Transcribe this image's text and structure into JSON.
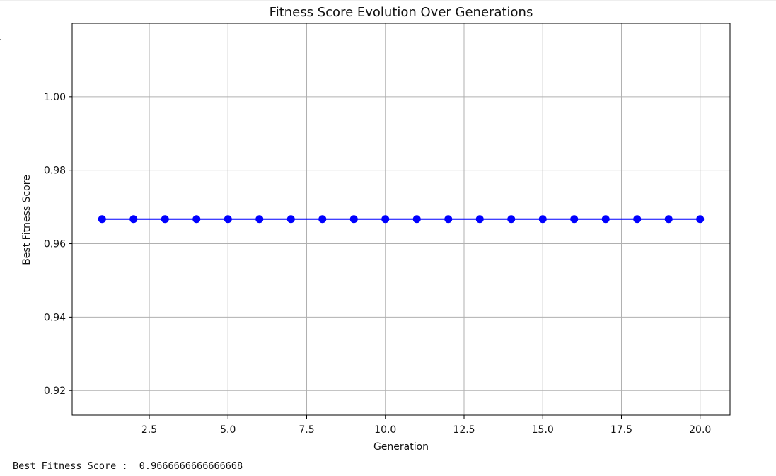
{
  "chart_data": {
    "type": "line",
    "title": "Fitness Score Evolution Over Generations",
    "xlabel": "Generation",
    "ylabel": "Best Fitness Score",
    "xlim": [
      0.05,
      20.95
    ],
    "ylim": [
      0.9133,
      1.02
    ],
    "xticks": [
      2.5,
      5.0,
      7.5,
      10.0,
      12.5,
      15.0,
      17.5,
      20.0
    ],
    "xtick_labels": [
      "2.5",
      "5.0",
      "7.5",
      "10.0",
      "12.5",
      "15.0",
      "17.5",
      "20.0"
    ],
    "yticks": [
      0.92,
      0.94,
      0.96,
      0.98,
      1.0
    ],
    "ytick_labels": [
      "0.92",
      "0.94",
      "0.96",
      "0.98",
      "1.00"
    ],
    "grid": true,
    "marker": "o",
    "series": [
      {
        "color": "#0000ff",
        "x": [
          1,
          2,
          3,
          4,
          5,
          6,
          7,
          8,
          9,
          10,
          11,
          12,
          13,
          14,
          15,
          16,
          17,
          18,
          19,
          20
        ],
        "y": [
          0.9667,
          0.9667,
          0.9667,
          0.9667,
          0.9667,
          0.9667,
          0.9667,
          0.9667,
          0.9667,
          0.9667,
          0.9667,
          0.9667,
          0.9667,
          0.9667,
          0.9667,
          0.9667,
          0.9667,
          0.9667,
          0.9667,
          0.9667
        ]
      }
    ]
  },
  "output": {
    "text": "Best Fitness Score :  0.9666666666666668"
  }
}
